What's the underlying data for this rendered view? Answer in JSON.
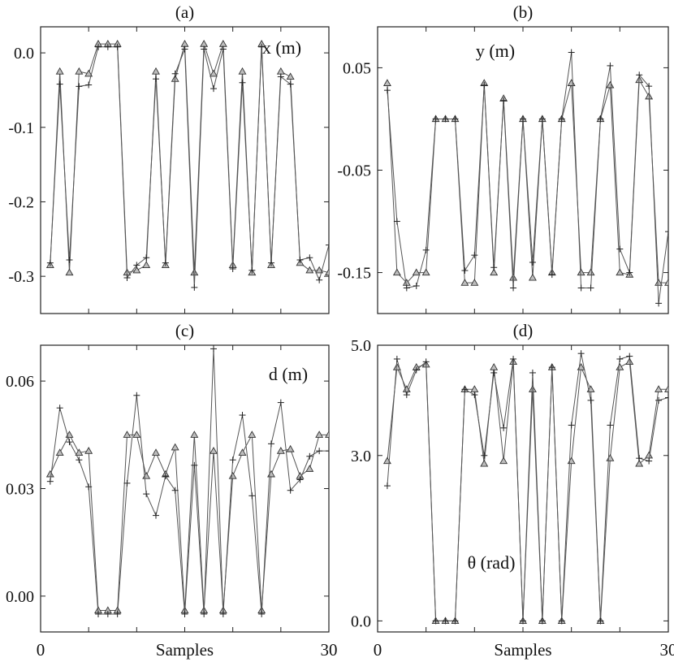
{
  "figure": {
    "colors": {
      "axis": "#222222",
      "line": "#555555",
      "triangle_fill": "#bdbdbd",
      "plus": "#222222"
    }
  },
  "chart_data": [
    {
      "type": "line",
      "panel": "(a)",
      "annotation": "x (m)",
      "xlim": [
        0,
        30
      ],
      "ylim": [
        -0.35,
        0.035
      ],
      "x_tick_labels": [],
      "y_ticks": [
        0.0,
        -0.1,
        -0.2,
        -0.3
      ],
      "y_tick_labels": [
        "0.0",
        "-0.1",
        "-0.2",
        "-0.3"
      ],
      "x": [
        1,
        2,
        3,
        4,
        5,
        6,
        7,
        8,
        9,
        10,
        11,
        12,
        13,
        14,
        15,
        16,
        17,
        18,
        19,
        20,
        21,
        22,
        23,
        24,
        25,
        26,
        27,
        28,
        29,
        30
      ],
      "series": [
        {
          "marker": "triangle",
          "values": [
            -0.285,
            -0.025,
            -0.295,
            -0.025,
            -0.028,
            0.012,
            0.012,
            0.012,
            -0.295,
            -0.292,
            -0.285,
            -0.025,
            -0.285,
            -0.035,
            0.012,
            -0.295,
            0.012,
            -0.028,
            0.012,
            -0.285,
            -0.025,
            -0.295,
            0.012,
            -0.285,
            -0.025,
            -0.032,
            -0.282,
            -0.292,
            -0.292,
            -0.295
          ]
        },
        {
          "marker": "plus",
          "values": [
            -0.282,
            -0.042,
            -0.278,
            -0.045,
            -0.043,
            0.008,
            0.008,
            0.008,
            -0.302,
            -0.285,
            -0.275,
            -0.035,
            -0.282,
            -0.028,
            0.005,
            -0.315,
            0.005,
            -0.048,
            0.005,
            -0.29,
            -0.04,
            -0.292,
            0.008,
            -0.282,
            -0.032,
            -0.042,
            -0.278,
            -0.275,
            -0.305,
            -0.258
          ]
        }
      ]
    },
    {
      "type": "line",
      "panel": "(b)",
      "annotation": "y (m)",
      "xlim": [
        0,
        30
      ],
      "ylim": [
        -0.19,
        0.09
      ],
      "x_tick_labels": [],
      "y_ticks": [
        0.05,
        -0.05,
        -0.15
      ],
      "y_tick_labels": [
        "0.05",
        "-0.05",
        "-0.15"
      ],
      "x": [
        1,
        2,
        3,
        4,
        5,
        6,
        7,
        8,
        9,
        10,
        11,
        12,
        13,
        14,
        15,
        16,
        17,
        18,
        19,
        20,
        21,
        22,
        23,
        24,
        25,
        26,
        27,
        28,
        29,
        30
      ],
      "series": [
        {
          "marker": "triangle",
          "values": [
            0.035,
            -0.15,
            -0.16,
            -0.15,
            -0.15,
            0.0,
            0.0,
            0.0,
            -0.16,
            -0.16,
            0.035,
            -0.15,
            0.02,
            -0.155,
            0.0,
            -0.155,
            0.0,
            -0.15,
            0.0,
            0.035,
            -0.15,
            -0.15,
            0.0,
            0.033,
            -0.15,
            -0.152,
            0.038,
            0.022,
            -0.16,
            -0.16
          ]
        },
        {
          "marker": "plus",
          "values": [
            0.028,
            -0.1,
            -0.165,
            -0.163,
            -0.128,
            0.0,
            0.0,
            0.0,
            -0.148,
            -0.133,
            0.033,
            -0.145,
            0.018,
            -0.165,
            0.0,
            -0.14,
            0.0,
            -0.152,
            0.0,
            0.065,
            -0.165,
            -0.165,
            0.0,
            0.052,
            -0.127,
            -0.15,
            0.043,
            0.032,
            -0.18,
            -0.11
          ]
        }
      ]
    },
    {
      "type": "line",
      "panel": "(c)",
      "annotation": "d (m)",
      "xlim": [
        0,
        30
      ],
      "ylim": [
        -0.01,
        0.07
      ],
      "x_tick_labels": [
        "0",
        "Samples",
        "30"
      ],
      "y_ticks": [
        0.06,
        0.03,
        0.0
      ],
      "y_tick_labels": [
        "0.06",
        "0.03",
        "0.00"
      ],
      "x": [
        1,
        2,
        3,
        4,
        5,
        6,
        7,
        8,
        9,
        10,
        11,
        12,
        13,
        14,
        15,
        16,
        17,
        18,
        19,
        20,
        21,
        22,
        23,
        24,
        25,
        26,
        27,
        28,
        29,
        30
      ],
      "series": [
        {
          "marker": "triangle",
          "values": [
            0.034,
            0.04,
            0.045,
            0.04,
            0.0405,
            -0.004,
            -0.004,
            -0.004,
            0.045,
            0.045,
            0.0335,
            0.04,
            0.034,
            0.0415,
            -0.004,
            0.045,
            -0.004,
            0.0405,
            -0.004,
            0.0335,
            0.04,
            0.045,
            -0.004,
            0.034,
            0.0405,
            0.041,
            0.0335,
            0.0355,
            0.045,
            0.045
          ]
        },
        {
          "marker": "plus",
          "values": [
            0.032,
            0.0525,
            0.043,
            0.038,
            0.0305,
            -0.005,
            -0.005,
            -0.005,
            0.0315,
            0.056,
            0.0285,
            0.0225,
            0.0335,
            0.0295,
            -0.005,
            0.0365,
            -0.005,
            0.069,
            -0.005,
            0.038,
            0.0505,
            0.028,
            -0.005,
            0.0425,
            0.054,
            0.0295,
            0.0325,
            0.039,
            0.0405,
            0.0405
          ]
        }
      ]
    },
    {
      "type": "line",
      "panel": "(d)",
      "annotation": "θ (rad)",
      "xlim": [
        0,
        30
      ],
      "ylim": [
        -0.2,
        5.0
      ],
      "x_tick_labels": [
        "0",
        "Samples",
        "30"
      ],
      "y_ticks": [
        5.0,
        3.0,
        0.0
      ],
      "y_tick_labels": [
        "5.0",
        "3.0",
        "0.0"
      ],
      "x": [
        1,
        2,
        3,
        4,
        5,
        6,
        7,
        8,
        9,
        10,
        11,
        12,
        13,
        14,
        15,
        16,
        17,
        18,
        19,
        20,
        21,
        22,
        23,
        24,
        25,
        26,
        27,
        28,
        29,
        30
      ],
      "series": [
        {
          "marker": "triangle",
          "values": [
            2.9,
            4.6,
            4.2,
            4.6,
            4.65,
            0.0,
            0.0,
            0.0,
            4.2,
            4.2,
            2.85,
            4.6,
            2.9,
            4.7,
            0.0,
            4.2,
            0.0,
            4.6,
            0.0,
            2.9,
            4.6,
            4.2,
            0.0,
            2.95,
            4.6,
            4.7,
            2.85,
            3.0,
            4.2,
            4.2
          ]
        },
        {
          "marker": "plus",
          "values": [
            2.45,
            4.75,
            4.1,
            4.55,
            4.7,
            0.0,
            0.0,
            0.0,
            4.2,
            4.1,
            3.0,
            4.5,
            3.5,
            4.75,
            0.0,
            4.5,
            0.0,
            4.6,
            0.0,
            3.55,
            4.85,
            4.0,
            0.0,
            3.55,
            4.75,
            4.8,
            2.95,
            2.9,
            4.0,
            4.05
          ]
        }
      ]
    }
  ]
}
